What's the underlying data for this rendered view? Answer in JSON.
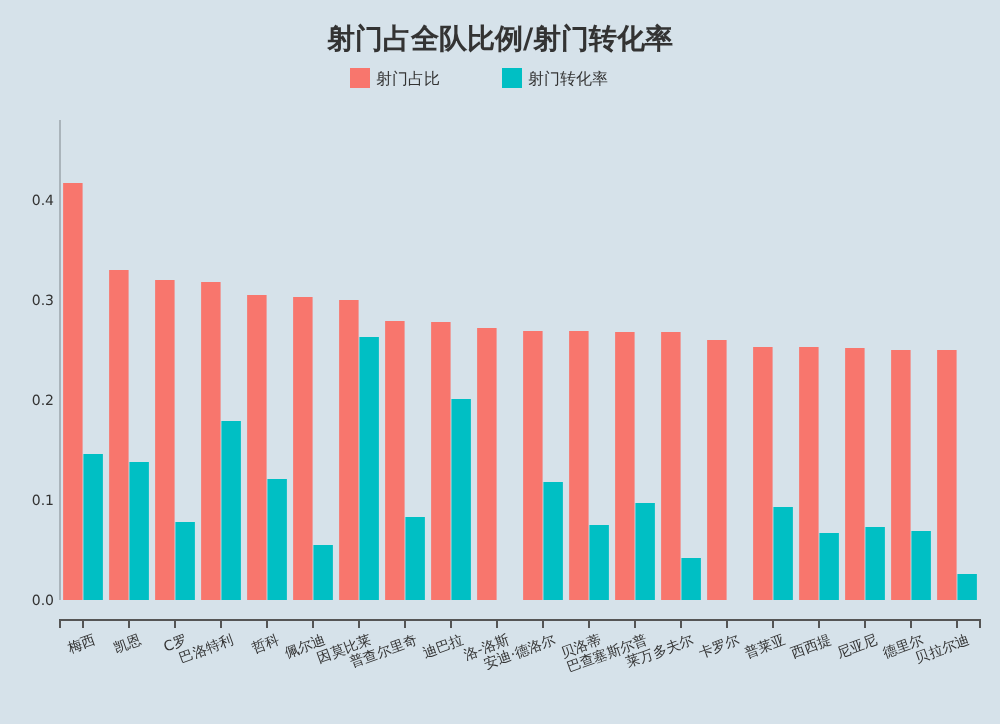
{
  "chart_data": {
    "type": "bar",
    "title": "射门占全队比例/射门转化率",
    "categories": [
      "梅西",
      "凯恩",
      "C罗",
      "巴洛特利",
      "哲科",
      "佩尔迪",
      "因莫比莱",
      "普查尔里奇",
      "迪巴拉",
      "洛-洛斯",
      "安迪·德洛尔",
      "贝洛蒂",
      "巴查塞斯尔普",
      "莱万多夫尔",
      "卡罗尔",
      "普莱亚",
      "西西提",
      "尼亚尼",
      "德里尔",
      "贝拉尔迪"
    ],
    "series": [
      {
        "name": "射门占比",
        "color": "#f8766d",
        "values": [
          0.417,
          0.33,
          0.32,
          0.318,
          0.305,
          0.303,
          0.3,
          0.279,
          0.278,
          0.272,
          0.269,
          0.269,
          0.268,
          0.268,
          0.26,
          0.253,
          0.253,
          0.252,
          0.25,
          0.25
        ]
      },
      {
        "name": "射门转化率",
        "color": "#00bfc4",
        "values": [
          0.146,
          0.138,
          0.078,
          0.179,
          0.121,
          0.055,
          0.263,
          0.083,
          0.201,
          null,
          0.118,
          0.075,
          0.097,
          0.042,
          null,
          0.093,
          0.067,
          0.073,
          0.069,
          0.026
        ]
      }
    ],
    "ylim": [
      0,
      0.48
    ],
    "yticks": [
      {
        "value": 0,
        "label": "0.0"
      },
      {
        "value": 0.1,
        "label": "0.1"
      },
      {
        "value": 0.2,
        "label": "0.2"
      },
      {
        "value": 0.3,
        "label": "0.3"
      },
      {
        "value": 0.4,
        "label": "0.4"
      }
    ],
    "legend": "top"
  }
}
